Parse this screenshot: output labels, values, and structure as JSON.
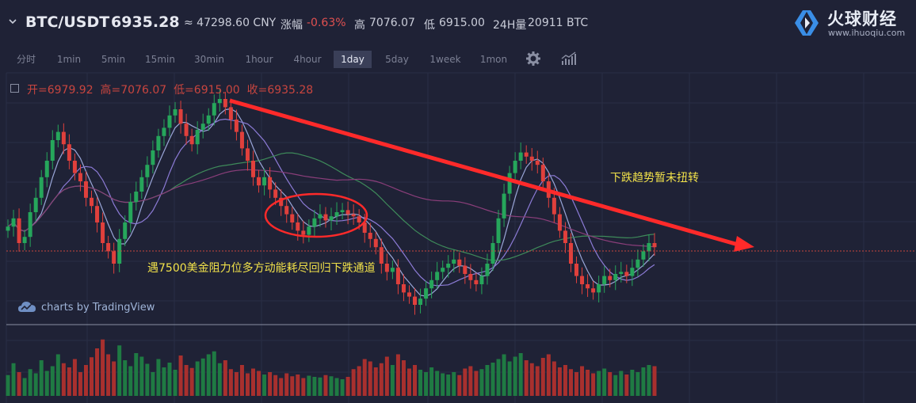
{
  "header": {
    "pair": "BTC/USDT",
    "price": "6935.28",
    "cny": "≈ 47298.60 CNY",
    "change_label": "涨幅",
    "change_value": "-0.63%",
    "high_label": "高",
    "high_value": "7076.07",
    "low_label": "低",
    "low_value": "6915.00",
    "volume_label": "24H量",
    "volume_value": "20911 BTC"
  },
  "logo": {
    "name": "火球财经",
    "url": "www.ihuoqiu.com"
  },
  "timeframes": [
    "分时",
    "1min",
    "5min",
    "15min",
    "30min",
    "1hour",
    "4hour",
    "1day",
    "5day",
    "1week",
    "1mon"
  ],
  "active_timeframe": "1day",
  "ohlc": {
    "open": "开=6979.92",
    "high": "高=7076.07",
    "low": "低=6915.00",
    "close": "收=6935.28"
  },
  "watermark": "charts by TradingView",
  "annotations": {
    "trend": "下跌趋势暂未扭转",
    "channel": "遇7500美金阻力位多方动能耗尽回归下跌通道"
  },
  "colors": {
    "background": "#1f2236",
    "up": "#26a65b",
    "down": "#e0403c",
    "trendline": "#ff2a2a",
    "annotation_text": "#f2e24a"
  },
  "chart_data": {
    "type": "candlestick",
    "interval": "1day",
    "last_close": 6935.28,
    "series_shape": [
      0.38,
      0.42,
      0.3,
      0.33,
      0.45,
      0.52,
      0.62,
      0.7,
      0.8,
      0.84,
      0.78,
      0.7,
      0.64,
      0.6,
      0.52,
      0.48,
      0.4,
      0.3,
      0.26,
      0.2,
      0.32,
      0.4,
      0.5,
      0.55,
      0.62,
      0.68,
      0.75,
      0.82,
      0.86,
      0.92,
      0.95,
      0.88,
      0.82,
      0.78,
      0.85,
      0.88,
      0.92,
      0.98,
      1.0,
      0.96,
      0.9,
      0.84,
      0.76,
      0.7,
      0.62,
      0.58,
      0.62,
      0.56,
      0.52,
      0.48,
      0.44,
      0.4,
      0.36,
      0.34,
      0.38,
      0.42,
      0.44,
      0.41,
      0.43,
      0.45,
      0.46,
      0.44,
      0.43,
      0.4,
      0.35,
      0.32,
      0.28,
      0.2,
      0.16,
      0.18,
      0.1,
      0.06,
      0.04,
      0.0,
      0.03,
      0.08,
      0.12,
      0.16,
      0.18,
      0.2,
      0.22,
      0.19,
      0.15,
      0.12,
      0.1,
      0.14,
      0.2,
      0.3,
      0.42,
      0.54,
      0.64,
      0.7,
      0.74,
      0.72,
      0.7,
      0.68,
      0.6,
      0.52,
      0.44,
      0.36,
      0.3,
      0.2,
      0.14,
      0.1,
      0.08,
      0.06,
      0.1,
      0.14,
      0.12,
      0.15,
      0.16,
      0.14,
      0.18,
      0.22,
      0.26,
      0.3,
      0.28
    ],
    "volume_shape": [
      0.35,
      0.55,
      0.4,
      0.3,
      0.45,
      0.38,
      0.6,
      0.42,
      0.5,
      0.7,
      0.55,
      0.48,
      0.62,
      0.4,
      0.52,
      0.65,
      0.8,
      0.95,
      0.7,
      0.58,
      0.85,
      0.6,
      0.5,
      0.72,
      0.66,
      0.54,
      0.4,
      0.62,
      0.48,
      0.56,
      0.44,
      0.68,
      0.52,
      0.47,
      0.58,
      0.63,
      0.7,
      0.75,
      0.55,
      0.6,
      0.45,
      0.4,
      0.52,
      0.38,
      0.46,
      0.42,
      0.36,
      0.4,
      0.35,
      0.3,
      0.38,
      0.33,
      0.36,
      0.3,
      0.34,
      0.32,
      0.31,
      0.35,
      0.33,
      0.3,
      0.28,
      0.32,
      0.45,
      0.5,
      0.62,
      0.58,
      0.48,
      0.55,
      0.66,
      0.52,
      0.7,
      0.6,
      0.46,
      0.52,
      0.44,
      0.4,
      0.48,
      0.42,
      0.38,
      0.36,
      0.4,
      0.35,
      0.46,
      0.5,
      0.42,
      0.45,
      0.52,
      0.56,
      0.62,
      0.7,
      0.58,
      0.66,
      0.72,
      0.6,
      0.55,
      0.5,
      0.64,
      0.7,
      0.58,
      0.48,
      0.52,
      0.45,
      0.4,
      0.5,
      0.44,
      0.38,
      0.42,
      0.46,
      0.4,
      0.35,
      0.42,
      0.36,
      0.44,
      0.4,
      0.48,
      0.52,
      0.5
    ]
  }
}
